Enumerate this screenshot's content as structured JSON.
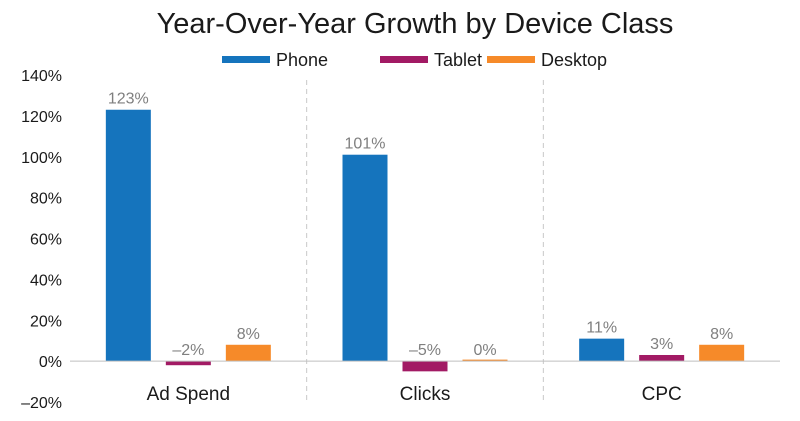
{
  "chart_data": {
    "type": "bar",
    "title": "Year-Over-Year Growth by Device Class",
    "xlabel": "",
    "ylabel": "",
    "categories": [
      "Ad Spend",
      "Clicks",
      "CPC"
    ],
    "series": [
      {
        "name": "Phone",
        "color": "#1574bd",
        "values": [
          123,
          101,
          11
        ],
        "labels": [
          "123%",
          "101%",
          "11%"
        ]
      },
      {
        "name": "Tablet",
        "color": "#a21a64",
        "values": [
          -2,
          -5,
          3
        ],
        "labels": [
          "–2%",
          "–5%",
          "3%"
        ]
      },
      {
        "name": "Desktop",
        "color": "#f68a29",
        "values": [
          8,
          0,
          8
        ],
        "labels": [
          "8%",
          "0%",
          "8%"
        ]
      }
    ],
    "ylim": [
      -20,
      140
    ],
    "yticks": [
      -20,
      0,
      20,
      40,
      60,
      80,
      100,
      120,
      140
    ],
    "ytick_labels": [
      "–20%",
      "0%",
      "20%",
      "40%",
      "60%",
      "80%",
      "100%",
      "120%",
      "140%"
    ],
    "legend_position": "top-center",
    "grid": false,
    "category_separators": "dashed"
  }
}
